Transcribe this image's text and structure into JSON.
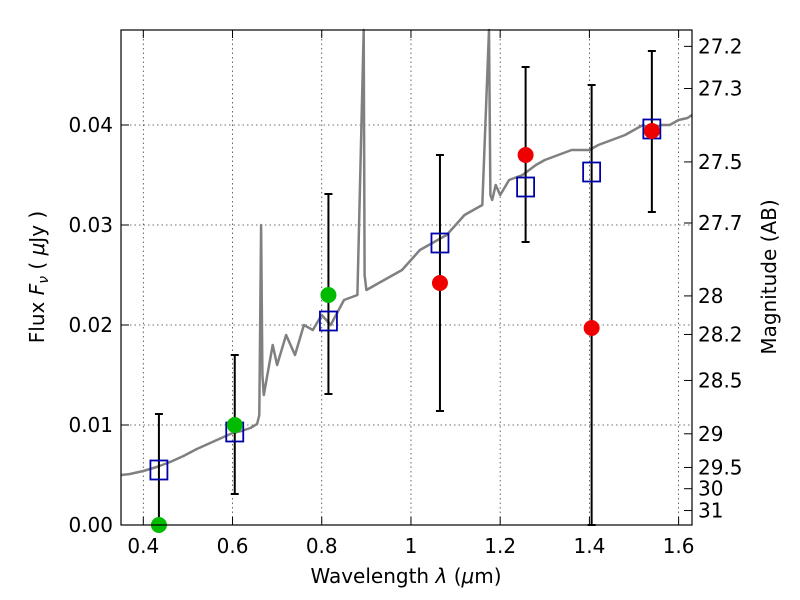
{
  "chart_data": {
    "type": "scatter",
    "title": "",
    "xlabel_text": "Wavelength",
    "xlabel_sym": "λ",
    "xlabel_unit_open": "(",
    "xlabel_unit_mu": "μ",
    "xlabel_unit_rest": "m)",
    "ylabel_text": "Flux",
    "ylabel_sym": "F",
    "ylabel_sub": "ν",
    "ylabel_unit_open": "(",
    "ylabel_unit_mu": "μ",
    "ylabel_unit_rest": "Jy )",
    "y2label": "Magnitude (AB)",
    "xlim": [
      0.35,
      1.63
    ],
    "ylim": [
      0.0,
      0.0495
    ],
    "grid": true,
    "xticks": [
      {
        "value": 0.4,
        "label": "0.4"
      },
      {
        "value": 0.6,
        "label": "0.6"
      },
      {
        "value": 0.8,
        "label": "0.8"
      },
      {
        "value": 1.0,
        "label": "1"
      },
      {
        "value": 1.2,
        "label": "1.2"
      },
      {
        "value": 1.4,
        "label": "1.4"
      },
      {
        "value": 1.6,
        "label": "1.6"
      }
    ],
    "yticks": [
      {
        "value": 0.0,
        "label": "0.00"
      },
      {
        "value": 0.01,
        "label": "0.01"
      },
      {
        "value": 0.02,
        "label": "0.02"
      },
      {
        "value": 0.03,
        "label": "0.03"
      },
      {
        "value": 0.04,
        "label": "0.04"
      }
    ],
    "y2ticks": [
      {
        "mag": 27.2,
        "label": "27.2"
      },
      {
        "mag": 27.3,
        "label": "27.3"
      },
      {
        "mag": 27.5,
        "label": "27.5"
      },
      {
        "mag": 27.7,
        "label": "27.7"
      },
      {
        "mag": 28,
        "label": "28"
      },
      {
        "mag": 28.2,
        "label": "28.2"
      },
      {
        "mag": 28.5,
        "label": "28.5"
      },
      {
        "mag": 29,
        "label": "29"
      },
      {
        "mag": 29.5,
        "label": "29.5"
      },
      {
        "mag": 30,
        "label": "30"
      },
      {
        "mag": 31,
        "label": "31"
      }
    ],
    "series": [
      {
        "kind": "spectrum",
        "color": "#808080",
        "x": [
          0.35,
          0.37,
          0.4,
          0.43,
          0.46,
          0.49,
          0.52,
          0.55,
          0.58,
          0.6,
          0.62,
          0.64,
          0.655,
          0.66,
          0.664,
          0.667,
          0.67,
          0.69,
          0.7,
          0.72,
          0.74,
          0.76,
          0.78,
          0.8,
          0.82,
          0.85,
          0.88,
          0.894,
          0.896,
          0.9,
          0.92,
          0.94,
          0.96,
          0.98,
          1.0,
          1.02,
          1.04,
          1.06,
          1.08,
          1.1,
          1.12,
          1.14,
          1.16,
          1.175,
          1.178,
          1.182,
          1.19,
          1.2,
          1.22,
          1.25,
          1.28,
          1.3,
          1.33,
          1.36,
          1.4,
          1.42,
          1.45,
          1.48,
          1.5,
          1.52,
          1.54,
          1.56,
          1.58,
          1.6,
          1.62,
          1.63
        ],
        "y": [
          0.005,
          0.0051,
          0.0054,
          0.0058,
          0.0063,
          0.0069,
          0.0076,
          0.0082,
          0.0088,
          0.0092,
          0.0094,
          0.0097,
          0.0101,
          0.011,
          0.03,
          0.015,
          0.013,
          0.018,
          0.016,
          0.019,
          0.017,
          0.02,
          0.0195,
          0.021,
          0.02,
          0.0225,
          0.023,
          0.0497,
          0.025,
          0.0235,
          0.024,
          0.0245,
          0.025,
          0.0255,
          0.0265,
          0.0275,
          0.028,
          0.0285,
          0.029,
          0.03,
          0.031,
          0.0315,
          0.032,
          0.0497,
          0.033,
          0.0325,
          0.034,
          0.033,
          0.0345,
          0.035,
          0.036,
          0.0365,
          0.037,
          0.0375,
          0.0375,
          0.038,
          0.0385,
          0.039,
          0.0395,
          0.04,
          0.0395,
          0.04,
          0.04,
          0.0405,
          0.0407,
          0.041
        ]
      },
      {
        "kind": "model-photometry",
        "marker": "open-square",
        "color": "#0000aa",
        "x": [
          0.435,
          0.605,
          0.815,
          1.065,
          1.257,
          1.405,
          1.54
        ],
        "y": [
          0.0055,
          0.0093,
          0.0204,
          0.0282,
          0.0338,
          0.0353,
          0.0396
        ]
      },
      {
        "kind": "observed-photometry",
        "marker": "filled-circle",
        "color": "#00bb00",
        "x": [
          0.435,
          0.605,
          0.815
        ],
        "y": [
          0.0,
          0.01,
          0.023
        ],
        "err_low": [
          0.0,
          0.0031,
          0.0131
        ],
        "err_high": [
          0.0111,
          0.017,
          0.0331
        ]
      },
      {
        "kind": "observed-photometry",
        "marker": "filled-circle",
        "color": "#ee0000",
        "x": [
          1.065,
          1.257,
          1.405,
          1.54
        ],
        "y": [
          0.0242,
          0.037,
          0.0197,
          0.0394
        ],
        "err_low": [
          0.0114,
          0.0283,
          0.0,
          0.0313
        ],
        "err_high": [
          0.037,
          0.0458,
          0.044,
          0.0474
        ]
      }
    ]
  }
}
